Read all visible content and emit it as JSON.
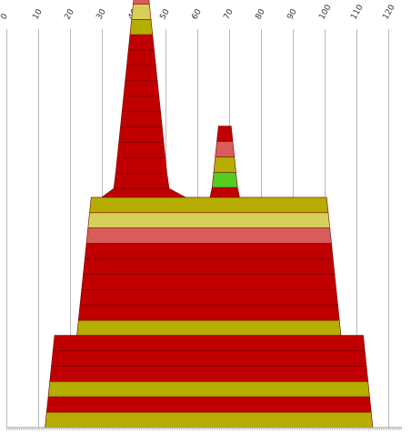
{
  "chart_data": {
    "type": "area",
    "title": "",
    "xlabel": "",
    "ylabel": "",
    "xlim": [
      0,
      120
    ],
    "x_ticks": [
      0,
      10,
      20,
      30,
      40,
      50,
      60,
      70,
      80,
      90,
      100,
      110,
      120
    ],
    "x_tick_labels": [
      "0",
      "10",
      "20",
      "30",
      "40",
      "50",
      "60",
      "70",
      "80",
      "90",
      "100",
      "110",
      "120"
    ],
    "grid": true,
    "legend": "none",
    "colors": {
      "red": "#c00000",
      "salmon": "#d95c5c",
      "olive": "#b5ad00",
      "khaki": "#d6d05a",
      "green": "#1a9e1a",
      "lightgreen": "#55cc22"
    },
    "stacks": [
      {
        "name": "",
        "bands": [
          {
            "left": 40.2,
            "right": 44.3,
            "color": "salmon"
          },
          {
            "left": 39.7,
            "right": 44.8,
            "color": "khaki"
          },
          {
            "left": 39.2,
            "right": 45.3,
            "color": "olive"
          },
          {
            "left": 38.7,
            "right": 45.8,
            "color": "red"
          },
          {
            "left": 38.2,
            "right": 46.3,
            "color": "red"
          },
          {
            "left": 37.7,
            "right": 46.8,
            "color": "red"
          },
          {
            "left": 37.2,
            "right": 47.3,
            "color": "red"
          },
          {
            "left": 36.7,
            "right": 47.8,
            "color": "red"
          },
          {
            "left": 36.2,
            "right": 48.3,
            "color": "red"
          },
          {
            "left": 35.7,
            "right": 48.8,
            "color": "red"
          },
          {
            "left": 35.2,
            "right": 49.3,
            "color": "red"
          },
          {
            "left": 34.7,
            "right": 49.8,
            "color": "red"
          },
          {
            "left": 34.2,
            "right": 50.3,
            "color": "red"
          },
          {
            "left": 33.6,
            "right": 51.0,
            "color": "red"
          },
          {
            "left": 27.0,
            "right": 60.0,
            "color": "green"
          }
        ]
      },
      {
        "name": "",
        "bands": [
          {
            "left": 66.5,
            "right": 70.5,
            "color": "red"
          },
          {
            "left": 66.0,
            "right": 71.0,
            "color": "salmon"
          },
          {
            "left": 65.5,
            "right": 71.5,
            "color": "olive"
          },
          {
            "left": 65.0,
            "right": 72.0,
            "color": "lightgreen"
          },
          {
            "left": 64.5,
            "right": 72.5,
            "color": "red"
          },
          {
            "left": 63.5,
            "right": 73.5,
            "color": "olive"
          }
        ]
      },
      {
        "name": "",
        "bands": [
          {
            "left": 26.5,
            "right": 100.5,
            "color": "olive"
          },
          {
            "left": 26.0,
            "right": 101.0,
            "color": "khaki"
          },
          {
            "left": 25.5,
            "right": 101.5,
            "color": "salmon"
          },
          {
            "left": 25.0,
            "right": 102.0,
            "color": "red"
          },
          {
            "left": 24.5,
            "right": 102.5,
            "color": "red"
          },
          {
            "left": 24.0,
            "right": 103.0,
            "color": "red"
          },
          {
            "left": 23.5,
            "right": 103.5,
            "color": "red"
          },
          {
            "left": 23.0,
            "right": 104.0,
            "color": "red"
          },
          {
            "left": 22.5,
            "right": 104.5,
            "color": "olive"
          }
        ]
      },
      {
        "name": "",
        "bands": [
          {
            "left": 15.0,
            "right": 112.0,
            "color": "red"
          },
          {
            "left": 14.5,
            "right": 112.5,
            "color": "red"
          },
          {
            "left": 14.0,
            "right": 113.0,
            "color": "red"
          },
          {
            "left": 13.5,
            "right": 113.5,
            "color": "olive"
          },
          {
            "left": 13.0,
            "right": 114.0,
            "color": "red"
          },
          {
            "left": 12.5,
            "right": 114.5,
            "color": "olive"
          }
        ]
      }
    ]
  }
}
